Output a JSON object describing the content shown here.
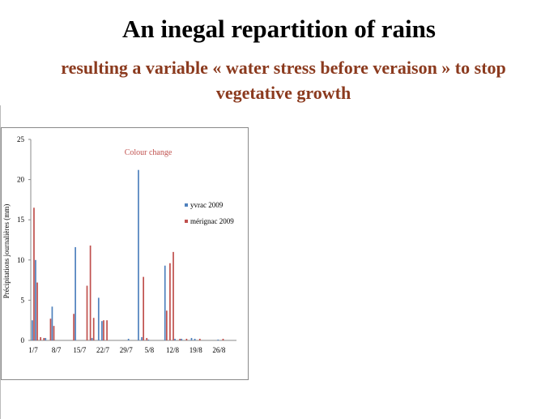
{
  "slide": {
    "title": "An inegal repartition of rains",
    "subtitle_line1": "resulting a variable « water stress before veraison » to stop",
    "subtitle_line2": "vegetative growth"
  },
  "chart_data": {
    "type": "bar",
    "ylabel": "Précipitations journalières (mm)",
    "ylim": [
      0,
      25
    ],
    "yticks": [
      0,
      5,
      10,
      15,
      20,
      25
    ],
    "x_start_day": "1/7",
    "x_days": 62,
    "xtick_labels": [
      "1/7",
      "8/7",
      "15/7",
      "22/7",
      "29/7",
      "5/8",
      "12/8",
      "19/8",
      "26/8"
    ],
    "annotation": "Colour change",
    "legend_position": "right",
    "colors": {
      "yvrac": "#4f81bd",
      "merignac": "#c0504d",
      "axis": "#8a8a8a",
      "annotation": "#c0504d"
    },
    "series": [
      {
        "name": "yvrac 2009",
        "color_key": "yvrac",
        "points": [
          [
            0,
            2.5
          ],
          [
            1,
            10
          ],
          [
            4,
            0.3
          ],
          [
            6,
            4.2
          ],
          [
            13,
            11.6
          ],
          [
            18,
            0.3
          ],
          [
            20,
            5.3
          ],
          [
            21,
            2.4
          ],
          [
            29,
            0.2
          ],
          [
            32,
            21.2
          ],
          [
            33,
            0.4
          ],
          [
            35,
            0.1
          ],
          [
            40,
            9.3
          ],
          [
            43,
            0.2
          ],
          [
            45,
            0.2
          ],
          [
            48,
            0.3
          ],
          [
            49,
            0.2
          ],
          [
            56,
            0.1
          ]
        ]
      },
      {
        "name": "mérignac 2009",
        "color_key": "merignac",
        "points": [
          [
            0,
            16.5
          ],
          [
            1,
            7.2
          ],
          [
            2,
            0.4
          ],
          [
            3,
            0.3
          ],
          [
            5,
            2.7
          ],
          [
            6,
            1.8
          ],
          [
            12,
            3.3
          ],
          [
            16,
            6.8
          ],
          [
            17,
            11.8
          ],
          [
            18,
            2.8
          ],
          [
            21,
            2.5
          ],
          [
            22,
            2.5
          ],
          [
            33,
            7.9
          ],
          [
            34,
            0.3
          ],
          [
            40,
            3.7
          ],
          [
            41,
            9.6
          ],
          [
            42,
            11.0
          ],
          [
            44,
            0.2
          ],
          [
            46,
            0.2
          ],
          [
            50,
            0.2
          ],
          [
            57,
            0.2
          ]
        ]
      }
    ]
  }
}
